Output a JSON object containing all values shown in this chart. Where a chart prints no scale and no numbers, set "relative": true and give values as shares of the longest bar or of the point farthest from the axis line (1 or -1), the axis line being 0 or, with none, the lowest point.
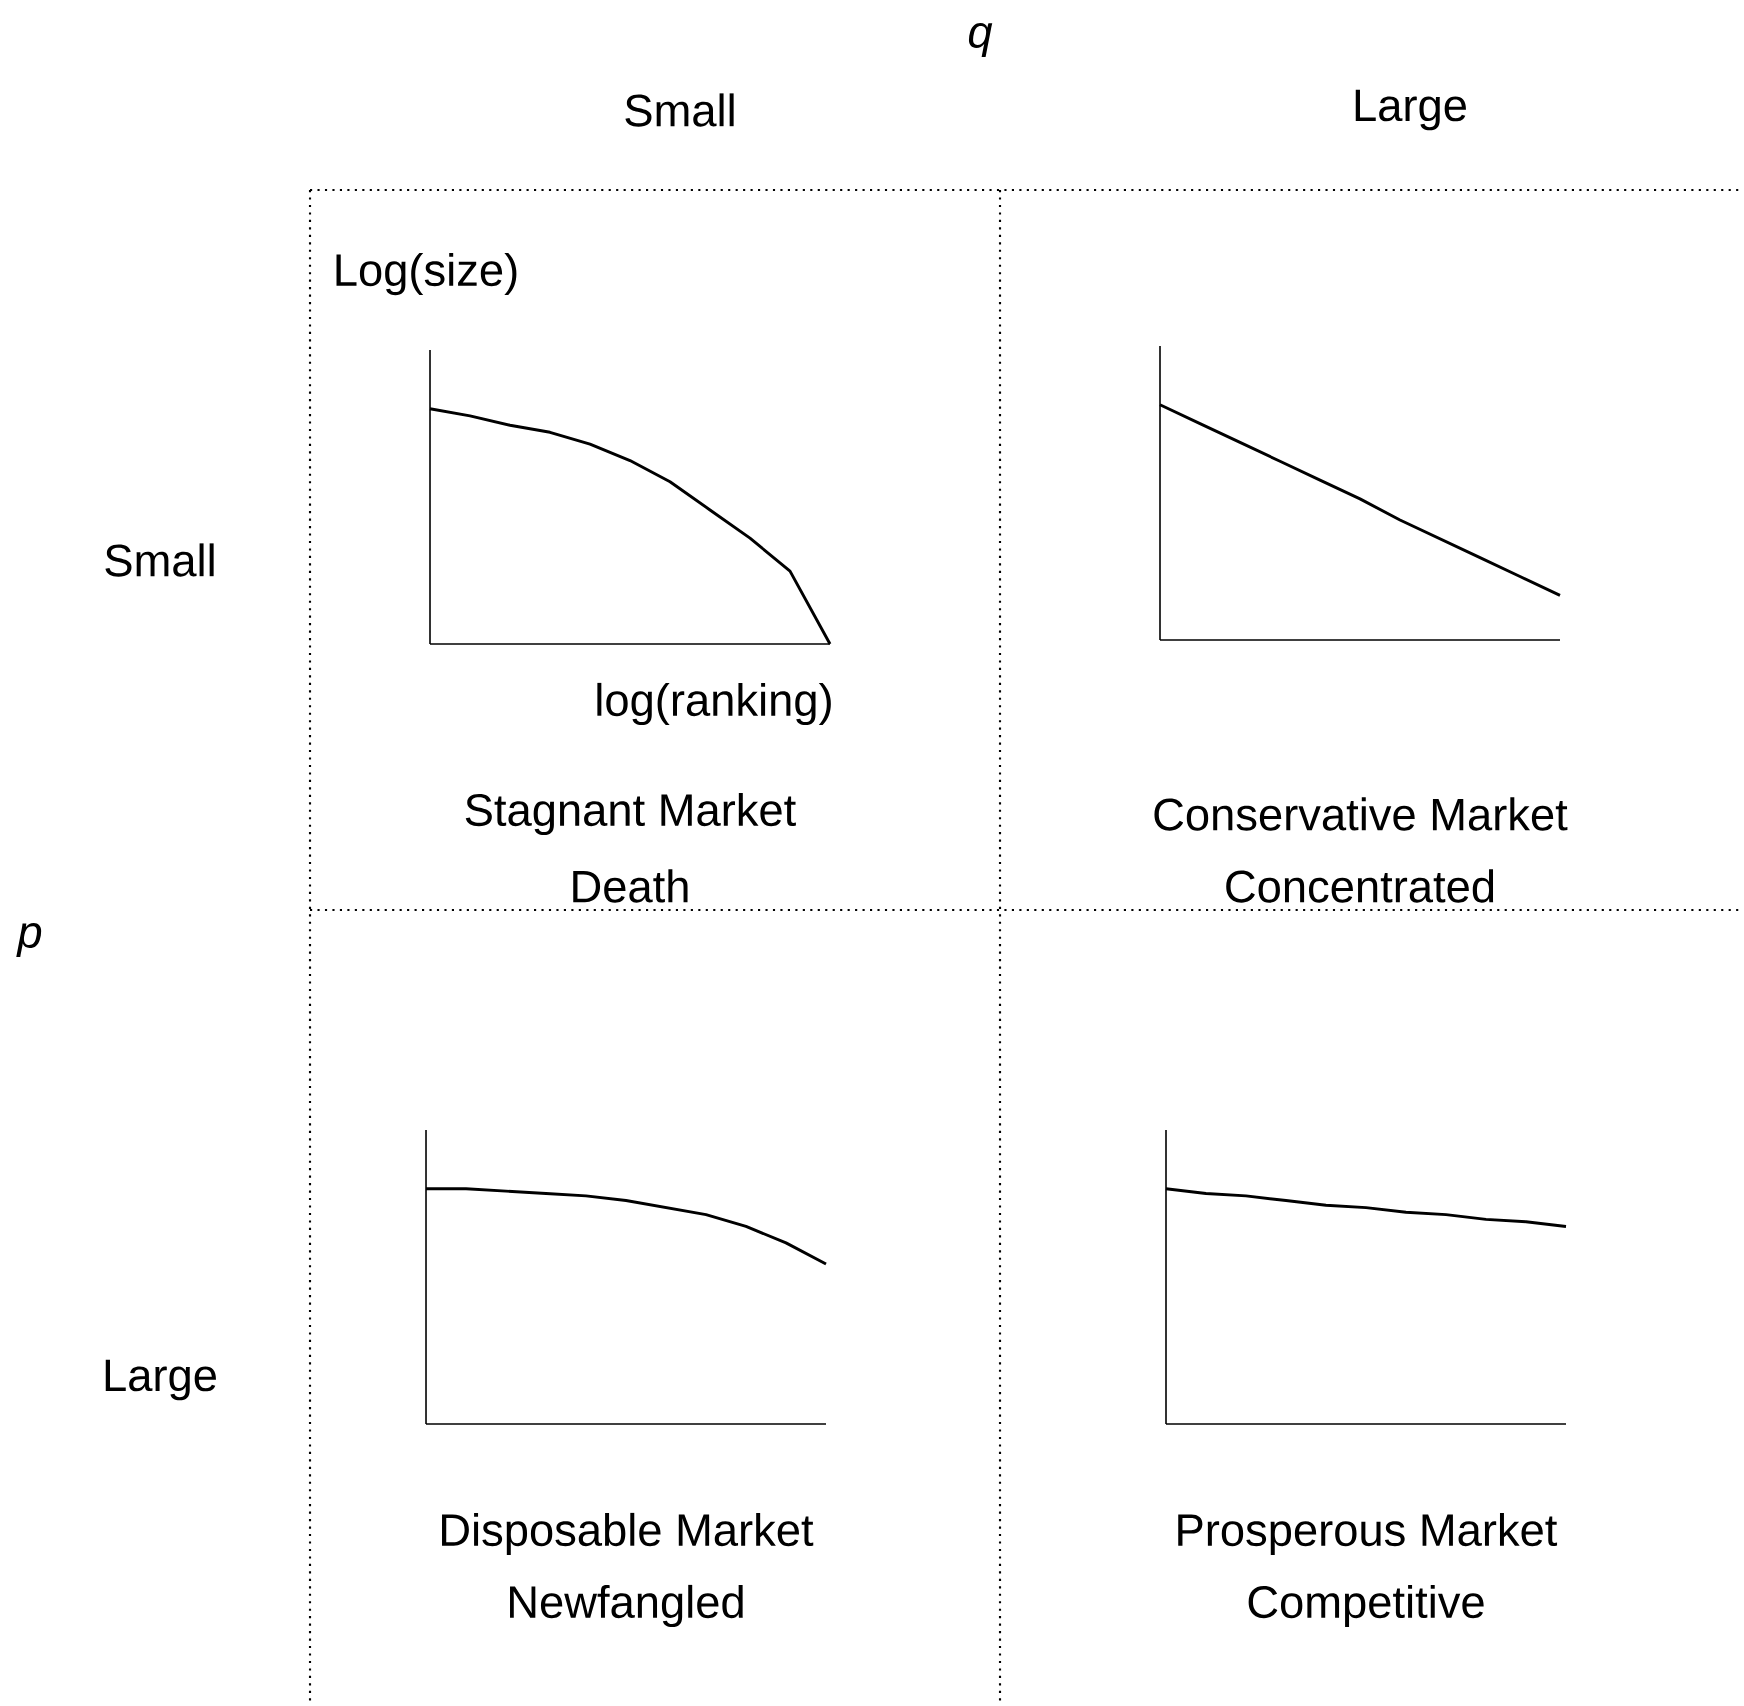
{
  "chart_data": [
    {
      "type": "line",
      "relative": true,
      "title": "Stagnant Market",
      "subtitle": "Death",
      "xlabel": "log(ranking)",
      "ylabel": "Log(size)",
      "annotations": [
        "q",
        "Small",
        "p",
        "Small"
      ],
      "categories": [
        null,
        null,
        null,
        null,
        null,
        null,
        null,
        null,
        null,
        null,
        null
      ],
      "series": [
        {
          "color": "#000000",
          "values": [
            1,
            0.97,
            0.93,
            0.9,
            0.85,
            0.78,
            0.69,
            0.57,
            0.45,
            0.31,
            0
          ]
        }
      ]
    },
    {
      "type": "line",
      "relative": true,
      "title": "Conservative Market",
      "subtitle": "Concentrated",
      "annotations": [
        "Large"
      ],
      "categories": [
        null,
        null,
        null,
        null,
        null,
        null,
        null,
        null,
        null,
        null,
        null
      ],
      "series": [
        {
          "color": "#000000",
          "values": [
            1,
            0.92,
            0.84,
            0.76,
            0.68,
            0.6,
            0.51,
            0.43,
            0.35,
            0.27,
            0.19
          ]
        }
      ]
    },
    {
      "type": "line",
      "relative": true,
      "title": "Disposable Market",
      "subtitle": "Newfangled",
      "annotations": [
        "Large"
      ],
      "categories": [
        null,
        null,
        null,
        null,
        null,
        null,
        null,
        null,
        null,
        null,
        null
      ],
      "series": [
        {
          "color": "#000000",
          "values": [
            1,
            1,
            0.99,
            0.98,
            0.97,
            0.95,
            0.92,
            0.89,
            0.84,
            0.77,
            0.68
          ]
        }
      ]
    },
    {
      "type": "line",
      "relative": true,
      "title": "Prosperous Market",
      "subtitle": "Competitive",
      "categories": [
        null,
        null,
        null,
        null,
        null,
        null,
        null,
        null,
        null,
        null,
        null
      ],
      "series": [
        {
          "color": "#000000",
          "values": [
            1,
            0.98,
            0.97,
            0.95,
            0.93,
            0.92,
            0.9,
            0.89,
            0.87,
            0.86,
            0.84
          ]
        }
      ]
    }
  ]
}
